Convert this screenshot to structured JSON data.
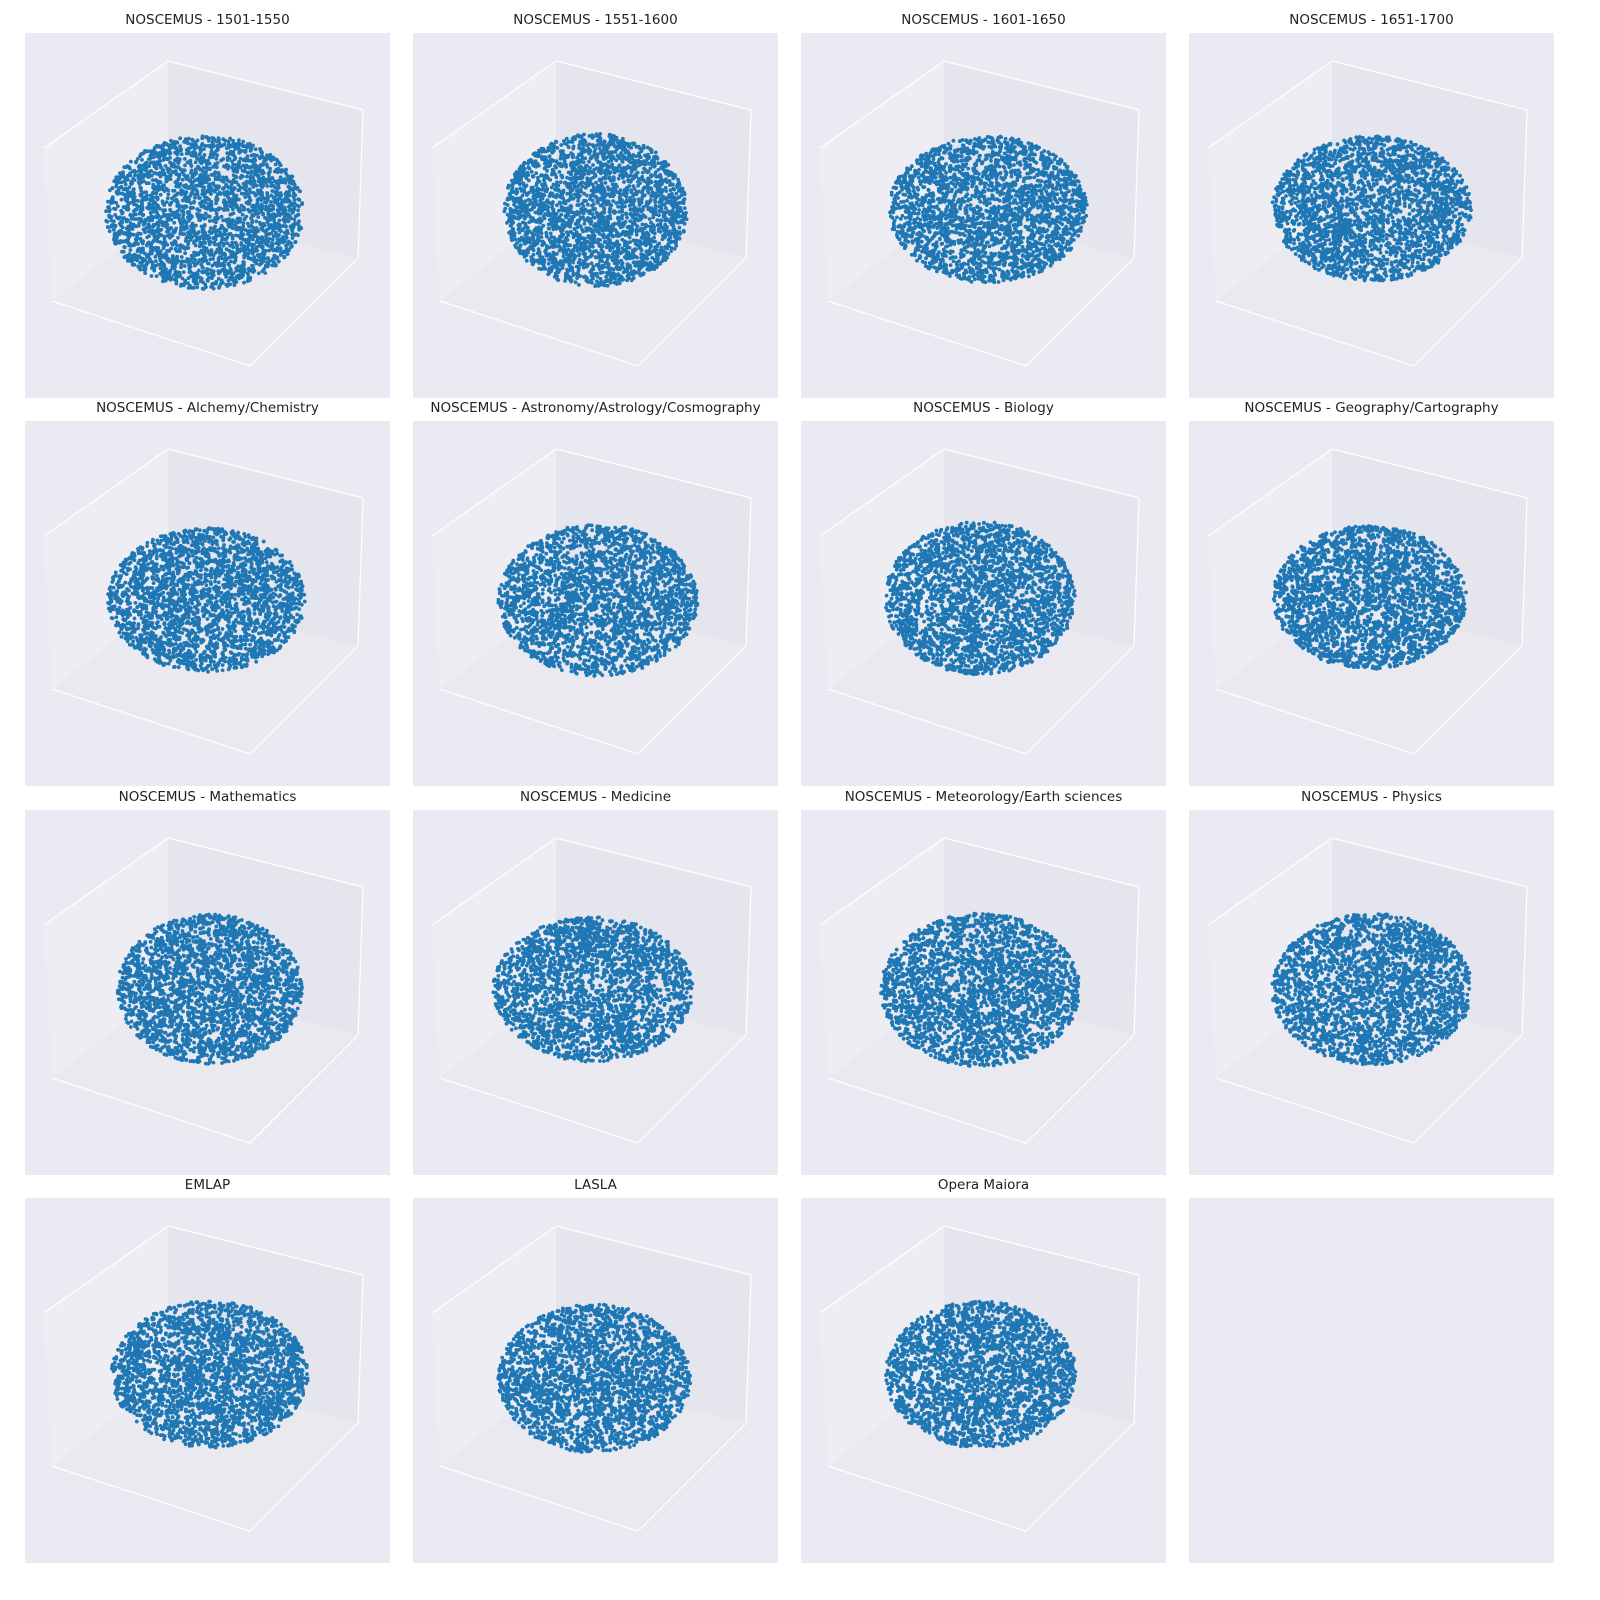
{
  "figure": {
    "background_color": "#ffffff",
    "axes_background_color": "#eaeaf2",
    "grid": false,
    "marker_color": "#1f77b4"
  },
  "chart_data": [
    {
      "type": "scatter",
      "projection": "3d",
      "title": "NOSCEMUS - 1501-1550",
      "axis_labels_shown": false,
      "tick_labels_shown": false
    },
    {
      "type": "scatter",
      "projection": "3d",
      "title": "NOSCEMUS - 1551-1600",
      "axis_labels_shown": false,
      "tick_labels_shown": false
    },
    {
      "type": "scatter",
      "projection": "3d",
      "title": "NOSCEMUS - 1601-1650",
      "axis_labels_shown": false,
      "tick_labels_shown": false
    },
    {
      "type": "scatter",
      "projection": "3d",
      "title": "NOSCEMUS - 1651-1700",
      "axis_labels_shown": false,
      "tick_labels_shown": false
    },
    {
      "type": "scatter",
      "projection": "3d",
      "title": "NOSCEMUS - Alchemy/Chemistry",
      "axis_labels_shown": false,
      "tick_labels_shown": false
    },
    {
      "type": "scatter",
      "projection": "3d",
      "title": "NOSCEMUS - Astronomy/Astrology/Cosmography",
      "axis_labels_shown": false,
      "tick_labels_shown": false
    },
    {
      "type": "scatter",
      "projection": "3d",
      "title": "NOSCEMUS - Biology",
      "axis_labels_shown": false,
      "tick_labels_shown": false
    },
    {
      "type": "scatter",
      "projection": "3d",
      "title": "NOSCEMUS - Geography/Cartography",
      "axis_labels_shown": false,
      "tick_labels_shown": false
    },
    {
      "type": "scatter",
      "projection": "3d",
      "title": "NOSCEMUS - Mathematics",
      "axis_labels_shown": false,
      "tick_labels_shown": false
    },
    {
      "type": "scatter",
      "projection": "3d",
      "title": "NOSCEMUS - Medicine",
      "axis_labels_shown": false,
      "tick_labels_shown": false
    },
    {
      "type": "scatter",
      "projection": "3d",
      "title": "NOSCEMUS - Meteorology/Earth sciences",
      "axis_labels_shown": false,
      "tick_labels_shown": false
    },
    {
      "type": "scatter",
      "projection": "3d",
      "title": "NOSCEMUS - Physics",
      "axis_labels_shown": false,
      "tick_labels_shown": false
    },
    {
      "type": "scatter",
      "projection": "3d",
      "title": "EMLAP",
      "axis_labels_shown": false,
      "tick_labels_shown": false
    },
    {
      "type": "scatter",
      "projection": "3d",
      "title": "LASLA",
      "axis_labels_shown": false,
      "tick_labels_shown": false
    },
    {
      "type": "scatter",
      "projection": "3d",
      "title": "Opera Maiora",
      "axis_labels_shown": false,
      "tick_labels_shown": false
    },
    {
      "type": "scatter",
      "projection": "2d",
      "title": "",
      "empty": true,
      "axis_labels_shown": false,
      "tick_labels_shown": false
    }
  ]
}
